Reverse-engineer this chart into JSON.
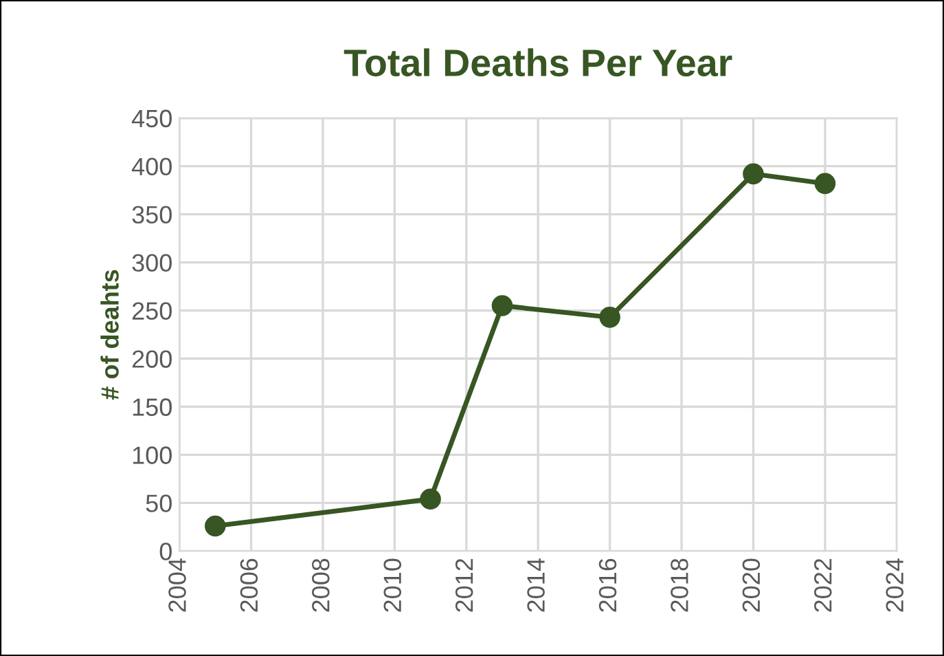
{
  "chart_data": {
    "type": "line",
    "title": "Total Deaths Per Year",
    "ylabel": "# of deahts",
    "x": [
      2005,
      2011,
      2013,
      2016,
      2020,
      2022
    ],
    "series": [
      {
        "color": "#375623",
        "values": [
          26,
          54,
          255,
          243,
          392,
          382
        ]
      }
    ],
    "xlim": [
      2004,
      2024
    ],
    "xticks": [
      2004,
      2006,
      2008,
      2010,
      2012,
      2014,
      2016,
      2018,
      2020,
      2022,
      2024
    ],
    "ylim": [
      0,
      450
    ],
    "yticks": [
      0,
      50,
      100,
      150,
      200,
      250,
      300,
      350,
      400,
      450
    ],
    "grid": true,
    "marker": "circle",
    "line_style": "solid"
  }
}
